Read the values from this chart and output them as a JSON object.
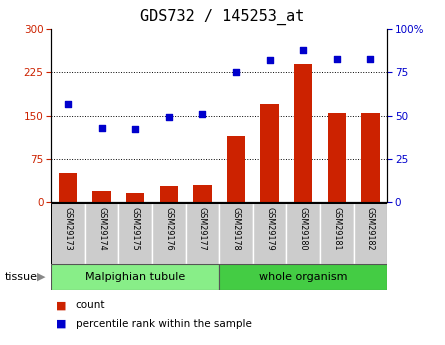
{
  "title": "GDS732 / 145253_at",
  "samples": [
    "GSM29173",
    "GSM29174",
    "GSM29175",
    "GSM29176",
    "GSM29177",
    "GSM29178",
    "GSM29179",
    "GSM29180",
    "GSM29181",
    "GSM29182"
  ],
  "counts": [
    50,
    18,
    15,
    28,
    30,
    115,
    170,
    240,
    155,
    155
  ],
  "percentiles": [
    57,
    43,
    42,
    49,
    51,
    75,
    82,
    88,
    83,
    83
  ],
  "bar_color": "#cc2200",
  "dot_color": "#0000cc",
  "left_yticks": [
    0,
    75,
    150,
    225,
    300
  ],
  "right_yticks": [
    0,
    25,
    50,
    75,
    100
  ],
  "ylim_left": [
    0,
    300
  ],
  "ylim_right": [
    0,
    100
  ],
  "tissue_groups": [
    {
      "label": "Malpighian tubule",
      "indices": [
        0,
        1,
        2,
        3,
        4
      ],
      "color": "#88ee88"
    },
    {
      "label": "whole organism",
      "indices": [
        5,
        6,
        7,
        8,
        9
      ],
      "color": "#44cc44"
    }
  ],
  "tissue_label": "tissue",
  "legend": [
    {
      "label": "count",
      "color": "#cc2200"
    },
    {
      "label": "percentile rank within the sample",
      "color": "#0000cc"
    }
  ],
  "grid_color": "black",
  "sample_bg": "#cccccc",
  "title_fontsize": 11
}
